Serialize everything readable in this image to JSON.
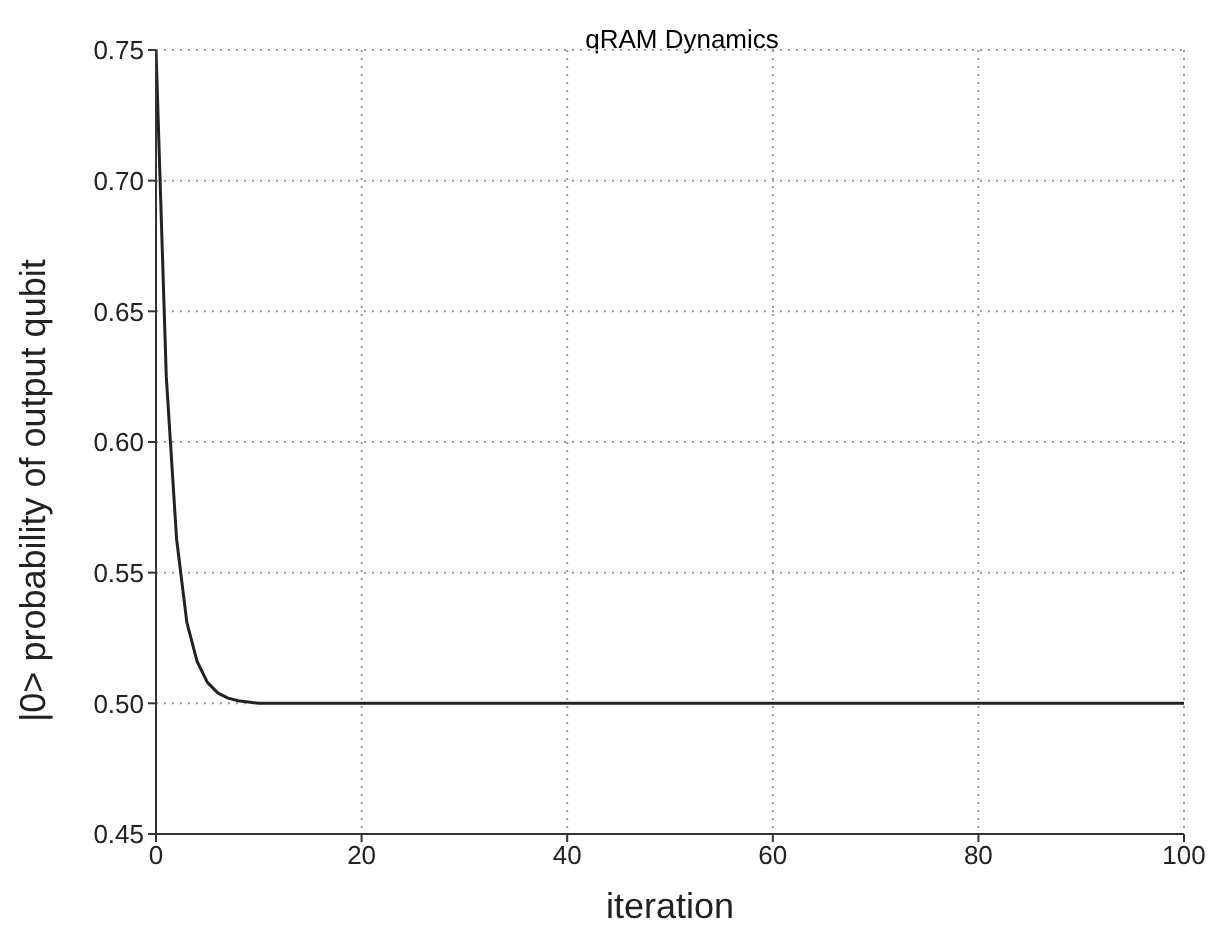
{
  "chart_data": {
    "type": "line",
    "title": "qRAM Dynamics",
    "xlabel": "iteration",
    "ylabel": "|0> probability of output qubit",
    "x": [
      0,
      1,
      2,
      3,
      4,
      5,
      6,
      7,
      8,
      10,
      100
    ],
    "series": [
      {
        "color": "#222222",
        "values": [
          0.75,
          0.625,
          0.563,
          0.531,
          0.516,
          0.508,
          0.504,
          0.502,
          0.501,
          0.5,
          0.5
        ]
      }
    ],
    "xlim": [
      0,
      100
    ],
    "xticks": [
      0,
      20,
      40,
      60,
      80,
      100
    ],
    "ylim": [
      0.45,
      0.75
    ],
    "yticks": [
      0.45,
      {
        "value": 0.5,
        "label": "0.50"
      },
      0.55,
      {
        "value": 0.6,
        "label": "0.60"
      },
      0.65,
      {
        "value": 0.7,
        "label": "0.70"
      },
      0.75
    ],
    "grid": true,
    "marker": "none",
    "line_style": "solid"
  }
}
